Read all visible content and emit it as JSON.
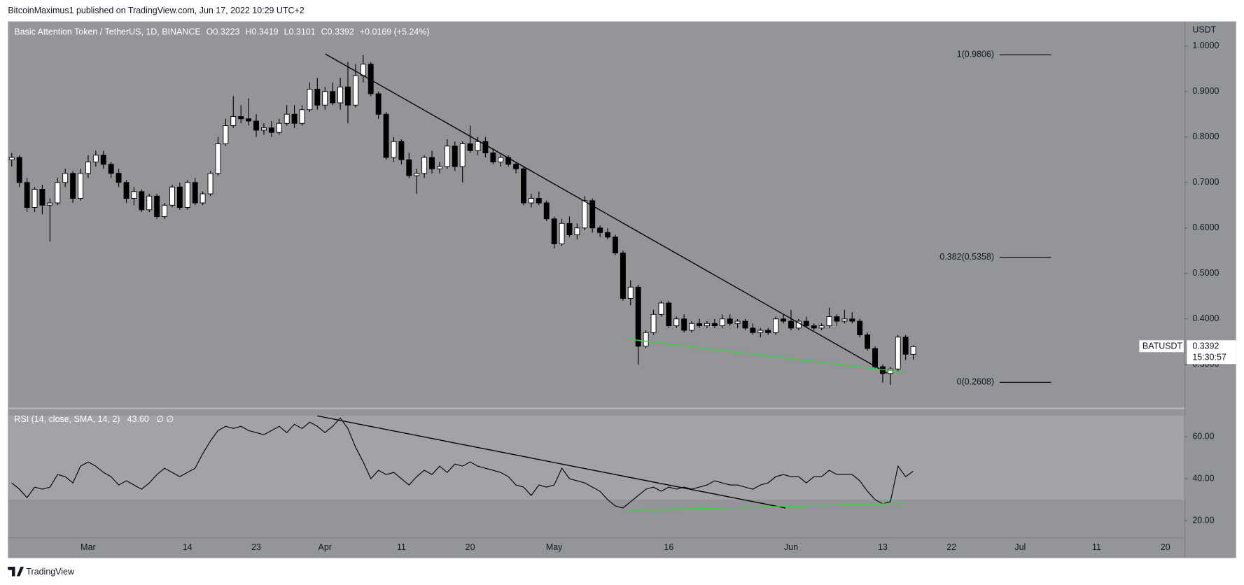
{
  "header": {
    "published": "BitcoinMaximus1 published on TradingView.com, Jun 17, 2022 10:29 UTC+2"
  },
  "chart_data": [
    {
      "type": "candlestick",
      "title": "Basic Attention Token / TetherUS, 1D, BINANCE",
      "ohlc_labels": [
        "O",
        "H",
        "L",
        "C"
      ],
      "change": "+0.0169 (+5.24%)",
      "axis_label": "USDT",
      "countdown": "15:30:57",
      "categories": [
        null,
        null,
        null,
        null,
        null,
        null,
        null,
        null,
        null,
        null,
        "Mar",
        null,
        null,
        null,
        null,
        null,
        null,
        null,
        null,
        null,
        null,
        null,
        null,
        "14",
        null,
        null,
        null,
        null,
        null,
        null,
        null,
        null,
        "23",
        null,
        null,
        null,
        null,
        null,
        null,
        null,
        null,
        "Apr",
        null,
        null,
        null,
        null,
        null,
        null,
        null,
        null,
        null,
        "11",
        null,
        null,
        null,
        null,
        null,
        null,
        null,
        null,
        "20",
        null,
        null,
        null,
        null,
        null,
        null,
        null,
        null,
        null,
        null,
        "May",
        null,
        null,
        null,
        null,
        null,
        null,
        null,
        null,
        null,
        null,
        null,
        null,
        null,
        null,
        "16",
        null,
        null,
        null,
        null,
        null,
        null,
        null,
        null,
        null,
        null,
        null,
        null,
        null,
        null,
        null,
        "Jun",
        null,
        null,
        null,
        null,
        null,
        null,
        null,
        null,
        null,
        null,
        null,
        "13",
        null,
        null,
        null,
        null,
        null,
        null,
        null,
        null,
        "22",
        null,
        null,
        null,
        null,
        null,
        null,
        null,
        null,
        "Jul",
        null,
        null,
        null,
        null,
        null,
        null,
        null,
        null,
        null,
        "11",
        null,
        null,
        null,
        null,
        null,
        null,
        null,
        null,
        "20",
        null,
        null
      ],
      "series": [
        {
          "name": "BATUSDT",
          "up_color": "#ffffff",
          "down_color": "#000000",
          "outline_color": "#000000",
          "values": [
            [
              0.75,
              0.765,
              0.735,
              0.755
            ],
            [
              0.755,
              0.76,
              0.69,
              0.7
            ],
            [
              0.7,
              0.71,
              0.635,
              0.645
            ],
            [
              0.645,
              0.69,
              0.635,
              0.685
            ],
            [
              0.685,
              0.695,
              0.63,
              0.65
            ],
            [
              0.65,
              0.665,
              0.57,
              0.655
            ],
            [
              0.655,
              0.71,
              0.65,
              0.7
            ],
            [
              0.7,
              0.73,
              0.69,
              0.72
            ],
            [
              0.72,
              0.725,
              0.655,
              0.665
            ],
            [
              0.665,
              0.73,
              0.66,
              0.72
            ],
            [
              0.72,
              0.76,
              0.71,
              0.745
            ],
            [
              0.745,
              0.77,
              0.735,
              0.76
            ],
            [
              0.76,
              0.77,
              0.73,
              0.74
            ],
            [
              0.74,
              0.745,
              0.71,
              0.72
            ],
            [
              0.72,
              0.73,
              0.69,
              0.7
            ],
            [
              0.7,
              0.705,
              0.655,
              0.665
            ],
            [
              0.665,
              0.69,
              0.65,
              0.68
            ],
            [
              0.68,
              0.685,
              0.635,
              0.64
            ],
            [
              0.64,
              0.675,
              0.635,
              0.67
            ],
            [
              0.67,
              0.675,
              0.62,
              0.625
            ],
            [
              0.625,
              0.655,
              0.62,
              0.65
            ],
            [
              0.65,
              0.695,
              0.645,
              0.69
            ],
            [
              0.69,
              0.7,
              0.64,
              0.645
            ],
            [
              0.645,
              0.705,
              0.64,
              0.7
            ],
            [
              0.7,
              0.71,
              0.65,
              0.655
            ],
            [
              0.655,
              0.68,
              0.65,
              0.675
            ],
            [
              0.675,
              0.725,
              0.67,
              0.72
            ],
            [
              0.72,
              0.8,
              0.715,
              0.785
            ],
            [
              0.785,
              0.84,
              0.78,
              0.825
            ],
            [
              0.825,
              0.89,
              0.82,
              0.845
            ],
            [
              0.845,
              0.87,
              0.83,
              0.84
            ],
            [
              0.84,
              0.885,
              0.825,
              0.835
            ],
            [
              0.835,
              0.85,
              0.8,
              0.815
            ],
            [
              0.815,
              0.83,
              0.805,
              0.82
            ],
            [
              0.82,
              0.835,
              0.8,
              0.81
            ],
            [
              0.81,
              0.84,
              0.805,
              0.83
            ],
            [
              0.83,
              0.87,
              0.825,
              0.85
            ],
            [
              0.85,
              0.87,
              0.82,
              0.83
            ],
            [
              0.83,
              0.87,
              0.825,
              0.86
            ],
            [
              0.86,
              0.92,
              0.855,
              0.905
            ],
            [
              0.905,
              0.93,
              0.86,
              0.87
            ],
            [
              0.87,
              0.91,
              0.86,
              0.9
            ],
            [
              0.9,
              0.92,
              0.87,
              0.875
            ],
            [
              0.875,
              0.93,
              0.86,
              0.91
            ],
            [
              0.91,
              0.965,
              0.83,
              0.87
            ],
            [
              0.87,
              0.96,
              0.865,
              0.935
            ],
            [
              0.935,
              0.98,
              0.92,
              0.96
            ],
            [
              0.96,
              0.965,
              0.89,
              0.895
            ],
            [
              0.895,
              0.9,
              0.84,
              0.85
            ],
            [
              0.85,
              0.855,
              0.75,
              0.755
            ],
            [
              0.755,
              0.8,
              0.745,
              0.79
            ],
            [
              0.79,
              0.795,
              0.74,
              0.75
            ],
            [
              0.75,
              0.765,
              0.71,
              0.715
            ],
            [
              0.715,
              0.73,
              0.675,
              0.72
            ],
            [
              0.72,
              0.76,
              0.71,
              0.755
            ],
            [
              0.755,
              0.77,
              0.72,
              0.73
            ],
            [
              0.73,
              0.745,
              0.72,
              0.735
            ],
            [
              0.735,
              0.795,
              0.73,
              0.78
            ],
            [
              0.78,
              0.79,
              0.725,
              0.735
            ],
            [
              0.735,
              0.79,
              0.7,
              0.785
            ],
            [
              0.785,
              0.825,
              0.765,
              0.77
            ],
            [
              0.77,
              0.8,
              0.76,
              0.79
            ],
            [
              0.79,
              0.8,
              0.755,
              0.765
            ],
            [
              0.765,
              0.775,
              0.74,
              0.745
            ],
            [
              0.745,
              0.76,
              0.735,
              0.755
            ],
            [
              0.755,
              0.76,
              0.735,
              0.74
            ],
            [
              0.74,
              0.745,
              0.72,
              0.73
            ],
            [
              0.73,
              0.735,
              0.65,
              0.655
            ],
            [
              0.655,
              0.675,
              0.645,
              0.665
            ],
            [
              0.665,
              0.68,
              0.65,
              0.655
            ],
            [
              0.655,
              0.66,
              0.615,
              0.62
            ],
            [
              0.62,
              0.625,
              0.555,
              0.565
            ],
            [
              0.565,
              0.62,
              0.56,
              0.61
            ],
            [
              0.61,
              0.625,
              0.58,
              0.585
            ],
            [
              0.585,
              0.61,
              0.575,
              0.6
            ],
            [
              0.6,
              0.67,
              0.595,
              0.66
            ],
            [
              0.66,
              0.665,
              0.59,
              0.6
            ],
            [
              0.6,
              0.605,
              0.58,
              0.59
            ],
            [
              0.59,
              0.6,
              0.575,
              0.58
            ],
            [
              0.58,
              0.585,
              0.54,
              0.545
            ],
            [
              0.545,
              0.55,
              0.44,
              0.445
            ],
            [
              0.445,
              0.485,
              0.43,
              0.47
            ],
            [
              0.47,
              0.475,
              0.3,
              0.34
            ],
            [
              0.34,
              0.375,
              0.335,
              0.37
            ],
            [
              0.37,
              0.42,
              0.365,
              0.41
            ],
            [
              0.41,
              0.44,
              0.405,
              0.435
            ],
            [
              0.435,
              0.44,
              0.38,
              0.385
            ],
            [
              0.385,
              0.405,
              0.38,
              0.4
            ],
            [
              0.4,
              0.41,
              0.37,
              0.375
            ],
            [
              0.375,
              0.395,
              0.37,
              0.39
            ],
            [
              0.39,
              0.4,
              0.38,
              0.385
            ],
            [
              0.385,
              0.395,
              0.38,
              0.39
            ],
            [
              0.39,
              0.4,
              0.38,
              0.385
            ],
            [
              0.385,
              0.41,
              0.38,
              0.4
            ],
            [
              0.4,
              0.41,
              0.385,
              0.39
            ],
            [
              0.39,
              0.4,
              0.38,
              0.395
            ],
            [
              0.395,
              0.4,
              0.375,
              0.38
            ],
            [
              0.38,
              0.39,
              0.365,
              0.37
            ],
            [
              0.37,
              0.38,
              0.36,
              0.375
            ],
            [
              0.375,
              0.38,
              0.365,
              0.37
            ],
            [
              0.37,
              0.405,
              0.365,
              0.4
            ],
            [
              0.4,
              0.41,
              0.39,
              0.395
            ],
            [
              0.395,
              0.42,
              0.375,
              0.38
            ],
            [
              0.38,
              0.4,
              0.375,
              0.395
            ],
            [
              0.395,
              0.405,
              0.38,
              0.385
            ],
            [
              0.385,
              0.39,
              0.375,
              0.38
            ],
            [
              0.38,
              0.39,
              0.375,
              0.385
            ],
            [
              0.385,
              0.425,
              0.38,
              0.405
            ],
            [
              0.405,
              0.41,
              0.385,
              0.395
            ],
            [
              0.395,
              0.42,
              0.39,
              0.4
            ],
            [
              0.4,
              0.415,
              0.39,
              0.395
            ],
            [
              0.395,
              0.4,
              0.36,
              0.365
            ],
            [
              0.365,
              0.37,
              0.33,
              0.335
            ],
            [
              0.335,
              0.34,
              0.29,
              0.295
            ],
            [
              0.295,
              0.3,
              0.26,
              0.28
            ],
            [
              0.28,
              0.295,
              0.255,
              0.29
            ],
            [
              0.29,
              0.365,
              0.285,
              0.36
            ],
            [
              0.36,
              0.365,
              0.31,
              0.3223
            ],
            [
              0.3223,
              0.3419,
              0.3101,
              0.3392
            ],
            null,
            null,
            null,
            null,
            null,
            null,
            null,
            null,
            null,
            null,
            null,
            null,
            null,
            null,
            null,
            null,
            null,
            null,
            null,
            null,
            null,
            null,
            null,
            null,
            null,
            null,
            null,
            null,
            null,
            null,
            null,
            null,
            null,
            null,
            null
          ]
        }
      ],
      "ylim": [
        0.206,
        1.054
      ],
      "yticks": [
        {
          "value": 0.3,
          "label": "0.3000"
        },
        {
          "value": 0.4,
          "label": "0.4000"
        },
        {
          "value": 0.5,
          "label": "0.5000"
        },
        {
          "value": 0.6,
          "label": "0.6000"
        },
        {
          "value": 0.7,
          "label": "0.7000"
        },
        {
          "value": 0.8,
          "label": "0.8000"
        },
        {
          "value": 0.9,
          "label": "0.9000"
        },
        {
          "value": 1.0,
          "label": "1.0000"
        }
      ],
      "fib_levels": [
        {
          "label": "1(0.9806)",
          "value": 0.9806
        },
        {
          "label": "0.382(0.5358)",
          "value": 0.5358
        },
        {
          "label": "0(0.2608)",
          "value": 0.2608
        }
      ],
      "grid": false
    },
    {
      "type": "line",
      "title": "RSI (14, close, SMA, 14, 2)",
      "legend_value": "43.60",
      "legend_extra": "∅  ∅",
      "color": "#000000",
      "band": [
        30,
        70
      ],
      "values": [
        38,
        35,
        31,
        36,
        35,
        36,
        42,
        41,
        38,
        46,
        48,
        46,
        43,
        41,
        37,
        39,
        37,
        35,
        38,
        42,
        45,
        43,
        41,
        43,
        45,
        52,
        58,
        63,
        65,
        64,
        65,
        63,
        62,
        61,
        63,
        65,
        62,
        66,
        64,
        67,
        65,
        62,
        65,
        69,
        64,
        55,
        48,
        40,
        44,
        42,
        43,
        40,
        37,
        41,
        44,
        42,
        46,
        43,
        47,
        46,
        48,
        46,
        45,
        44,
        43,
        41,
        37,
        36,
        32,
        37,
        36,
        37,
        45,
        40,
        39,
        38,
        36,
        34,
        30,
        27,
        26,
        29,
        32,
        35,
        36,
        34,
        36,
        35,
        36,
        35,
        36,
        37,
        39,
        38,
        37,
        37,
        36,
        35,
        37,
        38,
        41,
        42,
        41,
        41,
        38,
        41,
        41,
        44,
        42,
        42,
        42,
        39,
        34,
        30,
        28,
        29,
        46,
        41,
        43.6,
        null,
        null,
        null,
        null,
        null,
        null,
        null,
        null,
        null,
        null,
        null,
        null,
        null,
        null,
        null,
        null,
        null,
        null,
        null,
        null,
        null,
        null,
        null,
        null,
        null,
        null,
        null,
        null,
        null,
        null,
        null,
        null,
        null,
        null,
        null
      ],
      "ylim": [
        12,
        73
      ],
      "yticks": [
        {
          "value": 20,
          "label": "20.00"
        },
        {
          "value": 40,
          "label": "40.00"
        },
        {
          "value": 60,
          "label": "60.00"
        }
      ],
      "grid": false
    }
  ],
  "footer": {
    "brand": "TradingView"
  }
}
